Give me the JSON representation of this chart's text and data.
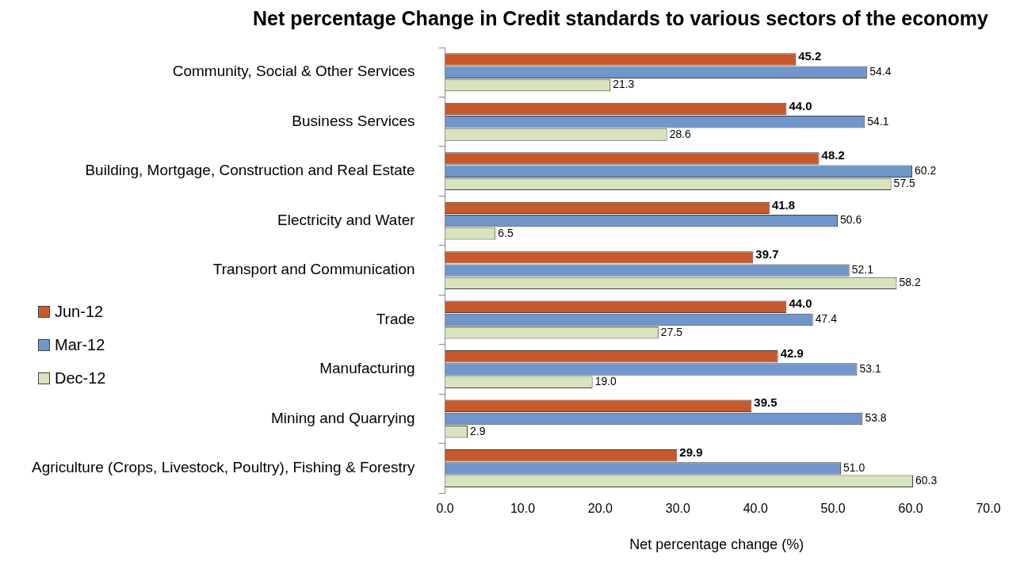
{
  "chart_data": {
    "type": "bar",
    "orientation": "horizontal",
    "title": "Net percentage Change in Credit standards to various sectors of the economy",
    "xlabel": "Net percentage change (%)",
    "categories": [
      "Community, Social & Other Services",
      "Business Services",
      "Building, Mortgage, Construction and Real Estate",
      "Electricity and Water",
      "Transport and Communication",
      "Trade",
      "Manufacturing",
      "Mining and Quarrying",
      "Agriculture (Crops, Livestock, Poultry), Fishing & Forestry"
    ],
    "series": [
      {
        "name": "Jun-12",
        "color": "#c8592c",
        "values": [
          45.2,
          44.0,
          48.2,
          41.8,
          39.7,
          44.0,
          42.9,
          39.5,
          29.9
        ],
        "value_labels": [
          "45.2",
          "44.0",
          "48.2",
          "41.8",
          "39.7",
          "44.0",
          "42.9",
          "39.5",
          "29.9"
        ]
      },
      {
        "name": "Mar-12",
        "color": "#7096cb",
        "values": [
          54.4,
          54.1,
          60.2,
          50.6,
          52.1,
          47.4,
          53.1,
          53.8,
          51.0
        ],
        "value_labels": [
          "54.4",
          "54.1",
          "60.2",
          "50.6",
          "52.1",
          "47.4",
          "53.1",
          "53.8",
          "51.0"
        ]
      },
      {
        "name": "Dec-12",
        "color": "#d7e4bd",
        "values": [
          21.3,
          28.6,
          57.5,
          6.5,
          58.2,
          27.5,
          19.0,
          2.9,
          60.3
        ],
        "value_labels": [
          "21.3",
          "28.6",
          "57.5",
          "6.5",
          "58.2",
          "27.5",
          "19.0",
          "2.9",
          "60.3"
        ]
      }
    ],
    "xlim": [
      0,
      70
    ],
    "xticks": [
      {
        "value": 0,
        "label": "0.0"
      },
      {
        "value": 10,
        "label": "10.0"
      },
      {
        "value": 20,
        "label": "20.0"
      },
      {
        "value": 30,
        "label": "30.0"
      },
      {
        "value": 40,
        "label": "40.0"
      },
      {
        "value": 50,
        "label": "50.0"
      },
      {
        "value": 60,
        "label": "60.0"
      },
      {
        "value": 70,
        "label": "70.0"
      }
    ],
    "grid": false,
    "legend": "left"
  }
}
